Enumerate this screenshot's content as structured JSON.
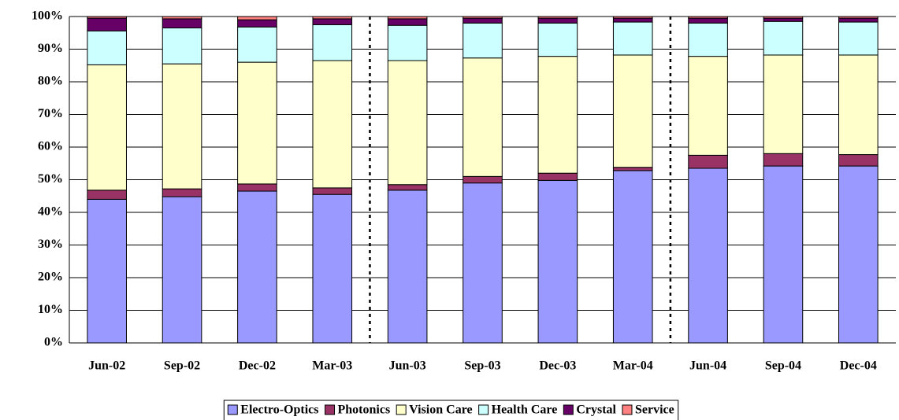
{
  "chart_data": {
    "type": "bar",
    "stacked": true,
    "categories": [
      "Jun-02",
      "Sep-02",
      "Dec-02",
      "Mar-03",
      "Jun-03",
      "Sep-03",
      "Dec-03",
      "Mar-04",
      "Jun-04",
      "Sep-04",
      "Dec-04"
    ],
    "series": [
      {
        "name": "Electro-Optics",
        "color": "#9999ff",
        "values": [
          44,
          44.8,
          46.5,
          45.5,
          46.8,
          49,
          49.8,
          52.8,
          53.5,
          54.2,
          54.2
        ]
      },
      {
        "name": "Photonics",
        "color": "#993366",
        "values": [
          2.8,
          2.4,
          2.2,
          2,
          1.7,
          2,
          2.2,
          1,
          4,
          3.8,
          3.5
        ]
      },
      {
        "name": "Vision Care",
        "color": "#ffffcc",
        "values": [
          38.4,
          38.3,
          37.3,
          39,
          38,
          36.3,
          35.8,
          34.4,
          30.3,
          30.2,
          30.5
        ]
      },
      {
        "name": "Health Care",
        "color": "#ccffff",
        "values": [
          10.4,
          11,
          10.8,
          11,
          10.8,
          10.7,
          10.2,
          10.1,
          10.2,
          10.3,
          10.1
        ]
      },
      {
        "name": "Crystal",
        "color": "#660066",
        "values": [
          3.9,
          2.8,
          2.2,
          1.8,
          2,
          1.5,
          1.5,
          1.2,
          1.5,
          1,
          1.2
        ]
      },
      {
        "name": "Service",
        "color": "#ff8080",
        "values": [
          0.5,
          0.7,
          1,
          0.7,
          0.7,
          0.5,
          0.5,
          0.5,
          0.5,
          0.5,
          0.5
        ]
      }
    ],
    "ylim": [
      0,
      100
    ],
    "yticks": [
      {
        "value": 0,
        "label": "0%"
      },
      {
        "value": 10,
        "label": "10%"
      },
      {
        "value": 20,
        "label": "20%"
      },
      {
        "value": 30,
        "label": "30%"
      },
      {
        "value": 40,
        "label": "40%"
      },
      {
        "value": 50,
        "label": "50%"
      },
      {
        "value": 60,
        "label": "60%"
      },
      {
        "value": 70,
        "label": "70%"
      },
      {
        "value": 80,
        "label": "80%"
      },
      {
        "value": 90,
        "label": "90%"
      },
      {
        "value": 100,
        "label": "100%"
      }
    ],
    "grid": true,
    "legend": "bottom"
  }
}
